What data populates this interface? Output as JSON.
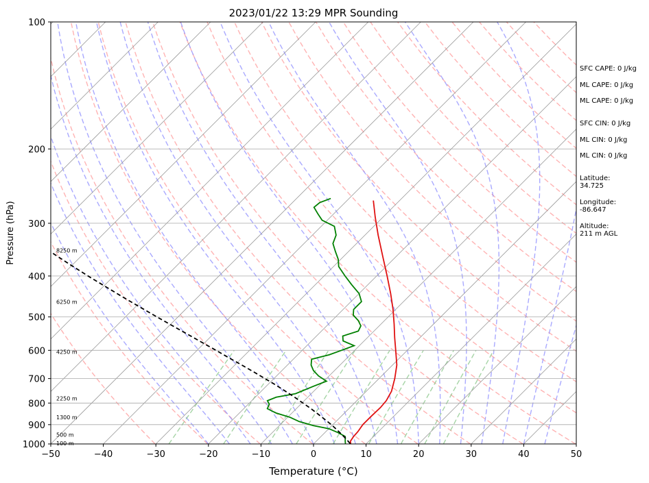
{
  "chart_data": {
    "type": "line",
    "title": "2023/01/22 13:29 MPR Sounding",
    "xlabel": "Temperature (°C)",
    "ylabel": "Pressure (hPa)",
    "xlim": [
      -50,
      50
    ],
    "ylim": [
      1000,
      100
    ],
    "y_scale": "log",
    "skew": true,
    "grid": true,
    "x_ticks": [
      "−50",
      "−40",
      "−30",
      "−20",
      "−10",
      "0",
      "10",
      "20",
      "30",
      "40",
      "50"
    ],
    "y_ticks": [
      "100",
      "200",
      "300",
      "400",
      "500",
      "600",
      "700",
      "800",
      "900",
      "1000"
    ],
    "height_labels": [
      {
        "p": 996,
        "label": "100 m"
      },
      {
        "p": 950,
        "label": "500 m"
      },
      {
        "p": 865,
        "label": "1300 m"
      },
      {
        "p": 780,
        "label": "2250 m"
      },
      {
        "p": 605,
        "label": "4250 m"
      },
      {
        "p": 460,
        "label": "6250 m"
      },
      {
        "p": 348,
        "label": "8250 m"
      }
    ],
    "series": [
      {
        "color": "#e01010",
        "points": [
          [
            998,
            7.0
          ],
          [
            985,
            6.5
          ],
          [
            960,
            6.2
          ],
          [
            935,
            6.1
          ],
          [
            900,
            5.7
          ],
          [
            860,
            5.7
          ],
          [
            820,
            5.8
          ],
          [
            790,
            5.6
          ],
          [
            750,
            4.8
          ],
          [
            700,
            3.0
          ],
          [
            650,
            0.8
          ],
          [
            600,
            -2.2
          ],
          [
            560,
            -4.8
          ],
          [
            520,
            -7.5
          ],
          [
            480,
            -10.5
          ],
          [
            440,
            -14.0
          ],
          [
            400,
            -18.0
          ],
          [
            360,
            -22.5
          ],
          [
            320,
            -27.5
          ],
          [
            290,
            -31.5
          ],
          [
            265,
            -35.0
          ]
        ]
      },
      {
        "color": "#008000",
        "points": [
          [
            998,
            6.0
          ],
          [
            985,
            5.5
          ],
          [
            960,
            4.6
          ],
          [
            940,
            2.5
          ],
          [
            920,
            0.0
          ],
          [
            905,
            -3.5
          ],
          [
            885,
            -7.0
          ],
          [
            865,
            -9.5
          ],
          [
            845,
            -13.0
          ],
          [
            825,
            -15.5
          ],
          [
            805,
            -16.0
          ],
          [
            790,
            -17.0
          ],
          [
            775,
            -16.0
          ],
          [
            760,
            -13.0
          ],
          [
            730,
            -11.0
          ],
          [
            710,
            -9.5
          ],
          [
            690,
            -12.0
          ],
          [
            670,
            -14.0
          ],
          [
            650,
            -15.5
          ],
          [
            630,
            -16.5
          ],
          [
            615,
            -14.0
          ],
          [
            600,
            -12.5
          ],
          [
            585,
            -11.0
          ],
          [
            570,
            -14.0
          ],
          [
            555,
            -15.0
          ],
          [
            540,
            -13.0
          ],
          [
            525,
            -13.5
          ],
          [
            510,
            -15.0
          ],
          [
            495,
            -17.0
          ],
          [
            480,
            -18.0
          ],
          [
            460,
            -18.0
          ],
          [
            440,
            -20.0
          ],
          [
            420,
            -23.0
          ],
          [
            400,
            -26.0
          ],
          [
            380,
            -29.0
          ],
          [
            365,
            -30.5
          ],
          [
            350,
            -32.5
          ],
          [
            335,
            -34.5
          ],
          [
            320,
            -35.5
          ],
          [
            305,
            -37.5
          ],
          [
            295,
            -41.0
          ],
          [
            285,
            -43.0
          ],
          [
            275,
            -45.0
          ],
          [
            268,
            -44.8
          ],
          [
            262,
            -43.5
          ]
        ]
      },
      {
        "color": "#000000",
        "dashed": true,
        "points": [
          [
            998,
            6.9
          ],
          [
            975,
            5.4
          ],
          [
            950,
            3.6
          ],
          [
            925,
            1.7
          ],
          [
            900,
            -0.3
          ],
          [
            875,
            -2.5
          ],
          [
            850,
            -4.8
          ],
          [
            825,
            -7.2
          ],
          [
            800,
            -9.8
          ],
          [
            775,
            -12.5
          ],
          [
            750,
            -15.4
          ],
          [
            725,
            -18.4
          ],
          [
            700,
            -21.7
          ],
          [
            675,
            -25.1
          ],
          [
            650,
            -28.7
          ],
          [
            625,
            -32.5
          ],
          [
            600,
            -36.4
          ],
          [
            575,
            -40.5
          ],
          [
            550,
            -44.8
          ],
          [
            525,
            -49.3
          ],
          [
            500,
            -54.0
          ],
          [
            475,
            -58.9
          ],
          [
            450,
            -64.0
          ],
          [
            425,
            -69.3
          ],
          [
            400,
            -74.9
          ],
          [
            375,
            -80.7
          ],
          [
            350,
            -86.8
          ],
          [
            325,
            -93.2
          ],
          [
            300,
            -99.9
          ],
          [
            280,
            -105.5
          ],
          [
            262,
            -110.8
          ]
        ]
      }
    ]
  },
  "side_info": {
    "sfc_cape": "SFC CAPE: 0 J/kg",
    "ml_cape_1": "ML CAPE: 0 J/kg",
    "ml_cape_2": "ML CAPE: 0 J/kg",
    "sfc_cin": "SFC CIN: 0 J/kg",
    "ml_cin_1": "ML CIN: 0 J/kg",
    "ml_cin_2": "ML CIN: 0 J/kg",
    "latitude": "Latitude:\n34.725",
    "longitude": "Longitude:\n-86.647",
    "altitude": "Altitude:\n211 m AGL"
  },
  "colors": {
    "dry_adiabat": "#ff9a9a",
    "moist_adiabat": "#8c8cff",
    "mixing_ratio": "#7fc27f",
    "isotherm": "#9a9a9a",
    "isobar": "#a8a8a8"
  }
}
